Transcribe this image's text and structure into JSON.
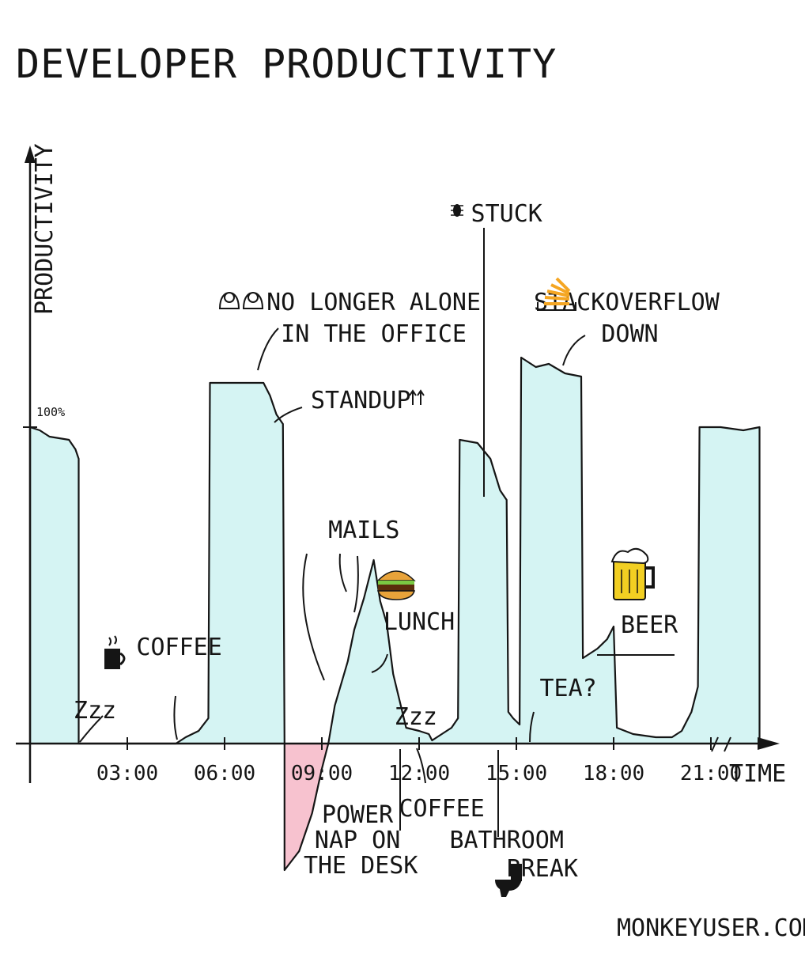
{
  "title": "DEVELOPER PRODUCTIVITY",
  "credit": "MONKEYUSER.COM",
  "chart_data": {
    "type": "area",
    "title": "DEVELOPER PRODUCTIVITY",
    "xlabel": "TIME",
    "ylabel": "PRODUCTIVITY",
    "y_reference_label": "100%",
    "xlim": [
      0,
      24
    ],
    "ylim": [
      -40,
      135
    ],
    "x_tick_labels": [
      "03:00",
      "06:00",
      "09:00",
      "12:00",
      "15:00",
      "18:00",
      "21:00"
    ],
    "x_tick_values": [
      3,
      6,
      9,
      12,
      15,
      18,
      21
    ],
    "colors": {
      "positive": "#d5f4f3",
      "negative": "#f7c2cf",
      "line": "#151515",
      "burger": "#e8a33a",
      "beer": "#f2cf22",
      "stackoverflow": "#f5a623"
    },
    "series": [
      {
        "values": [
          {
            "x": 0,
            "y": 0
          },
          {
            "x": 0,
            "y": 100
          },
          {
            "x": 0.3,
            "y": 99
          },
          {
            "x": 0.6,
            "y": 97
          },
          {
            "x": 1.2,
            "y": 96
          },
          {
            "x": 1.4,
            "y": 93
          },
          {
            "x": 1.5,
            "y": 90
          },
          {
            "x": 1.5,
            "y": 0
          },
          {
            "x": 4.5,
            "y": 0
          },
          {
            "x": 4.8,
            "y": 2
          },
          {
            "x": 5.2,
            "y": 4
          },
          {
            "x": 5.5,
            "y": 8
          },
          {
            "x": 5.55,
            "y": 114
          },
          {
            "x": 7.2,
            "y": 114
          },
          {
            "x": 7.4,
            "y": 110
          },
          {
            "x": 7.6,
            "y": 104
          },
          {
            "x": 7.8,
            "y": 101
          },
          {
            "x": 7.85,
            "y": 0
          },
          {
            "x": 7.85,
            "y": -40
          },
          {
            "x": 8.3,
            "y": -34
          },
          {
            "x": 8.7,
            "y": -22
          },
          {
            "x": 9.0,
            "y": -8
          },
          {
            "x": 9.2,
            "y": 0
          },
          {
            "x": 9.4,
            "y": 12
          },
          {
            "x": 9.8,
            "y": 26
          },
          {
            "x": 10.0,
            "y": 36
          },
          {
            "x": 10.3,
            "y": 46
          },
          {
            "x": 10.6,
            "y": 58
          },
          {
            "x": 10.8,
            "y": 45
          },
          {
            "x": 11.0,
            "y": 38
          },
          {
            "x": 11.2,
            "y": 22
          },
          {
            "x": 11.6,
            "y": 5
          },
          {
            "x": 12.0,
            "y": 4
          },
          {
            "x": 12.3,
            "y": 3
          },
          {
            "x": 12.4,
            "y": 1
          },
          {
            "x": 12.7,
            "y": 3
          },
          {
            "x": 13.0,
            "y": 5
          },
          {
            "x": 13.2,
            "y": 8
          },
          {
            "x": 13.25,
            "y": 96
          },
          {
            "x": 13.8,
            "y": 95
          },
          {
            "x": 14.2,
            "y": 90
          },
          {
            "x": 14.5,
            "y": 80
          },
          {
            "x": 14.7,
            "y": 77
          },
          {
            "x": 14.75,
            "y": 10
          },
          {
            "x": 14.9,
            "y": 8
          },
          {
            "x": 15.1,
            "y": 6
          },
          {
            "x": 15.15,
            "y": 122
          },
          {
            "x": 15.6,
            "y": 119
          },
          {
            "x": 16.0,
            "y": 120
          },
          {
            "x": 16.5,
            "y": 117
          },
          {
            "x": 17.0,
            "y": 116
          },
          {
            "x": 17.05,
            "y": 27
          },
          {
            "x": 17.5,
            "y": 30
          },
          {
            "x": 17.8,
            "y": 33
          },
          {
            "x": 18.0,
            "y": 37
          },
          {
            "x": 18.1,
            "y": 5
          },
          {
            "x": 18.6,
            "y": 3
          },
          {
            "x": 19.3,
            "y": 2
          },
          {
            "x": 19.8,
            "y": 2
          },
          {
            "x": 20.1,
            "y": 4
          },
          {
            "x": 20.4,
            "y": 10
          },
          {
            "x": 20.6,
            "y": 18
          },
          {
            "x": 20.65,
            "y": 100
          },
          {
            "x": 21.3,
            "y": 100
          },
          {
            "x": 22.0,
            "y": 99
          },
          {
            "x": 22.5,
            "y": 100
          },
          {
            "x": 22.5,
            "y": 0
          }
        ]
      }
    ],
    "annotations": [
      {
        "text": "Zzz",
        "x": 2.0,
        "y": 8
      },
      {
        "text": "COFFEE",
        "x": 4.6,
        "y": 28
      },
      {
        "text": "NO LONGER ALONE",
        "x": 10.6,
        "y": 137
      },
      {
        "text": "IN THE OFFICE",
        "x": 10.6,
        "y": 127
      },
      {
        "text": "STANDUP",
        "x": 10.2,
        "y": 106
      },
      {
        "text": "MAILS",
        "x": 10.3,
        "y": 65
      },
      {
        "text": "LUNCH",
        "x": 12.0,
        "y": 36
      },
      {
        "text": "Zzz",
        "x": 11.9,
        "y": 6
      },
      {
        "text": "POWER",
        "x": 10.1,
        "y": -25
      },
      {
        "text": "NAP ON",
        "x": 10.1,
        "y": -33
      },
      {
        "text": "THE DESK",
        "x": 10.2,
        "y": -41
      },
      {
        "text": "COFFEE",
        "x": 12.7,
        "y": -23
      },
      {
        "text": "STUCK",
        "x": 14.7,
        "y": 165
      },
      {
        "text": "STACKOVERFLOW",
        "x": 18.4,
        "y": 137
      },
      {
        "text": "DOWN",
        "x": 18.5,
        "y": 127
      },
      {
        "text": "BATHROOM",
        "x": 14.7,
        "y": -33
      },
      {
        "text": "BREAK",
        "x": 15.8,
        "y": -42
      },
      {
        "text": "TEA?",
        "x": 16.6,
        "y": 15
      },
      {
        "text": "BEER",
        "x": 19.1,
        "y": 35
      }
    ]
  }
}
